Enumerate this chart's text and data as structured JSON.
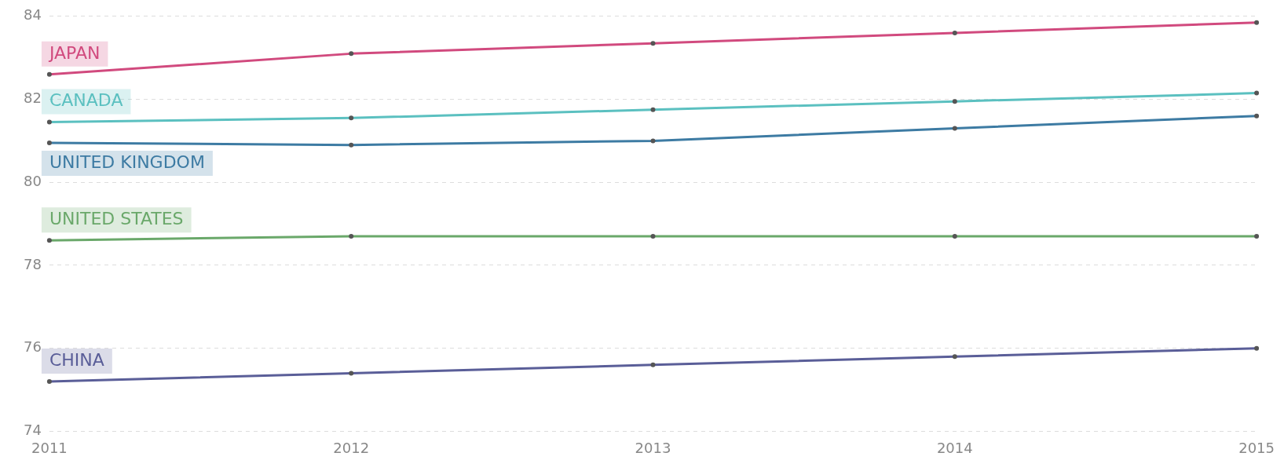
{
  "chart_data": {
    "type": "line",
    "categories": [
      "2011",
      "2012",
      "2013",
      "2014",
      "2015"
    ],
    "series": [
      {
        "name": "JAPAN",
        "color": "#d14a7e",
        "values": [
          82.6,
          83.1,
          83.35,
          83.6,
          83.85
        ]
      },
      {
        "name": "CANADA",
        "color": "#5bc0c0",
        "values": [
          81.45,
          81.55,
          81.75,
          81.95,
          82.15
        ]
      },
      {
        "name": "UNITED KINGDOM",
        "color": "#3d7ba3",
        "values": [
          80.95,
          80.9,
          81.0,
          81.3,
          81.6
        ]
      },
      {
        "name": "UNITED STATES",
        "color": "#6aa86a",
        "values": [
          78.6,
          78.7,
          78.7,
          78.7,
          78.7
        ]
      },
      {
        "name": "CHINA",
        "color": "#5a5e98",
        "values": [
          75.2,
          75.4,
          75.6,
          75.8,
          76.0
        ]
      }
    ],
    "ylim": [
      74,
      84
    ],
    "yticks": [
      74,
      76,
      78,
      80,
      82,
      84
    ],
    "grid": "y",
    "legend": false,
    "marker": "circle",
    "line_style": "solid"
  }
}
